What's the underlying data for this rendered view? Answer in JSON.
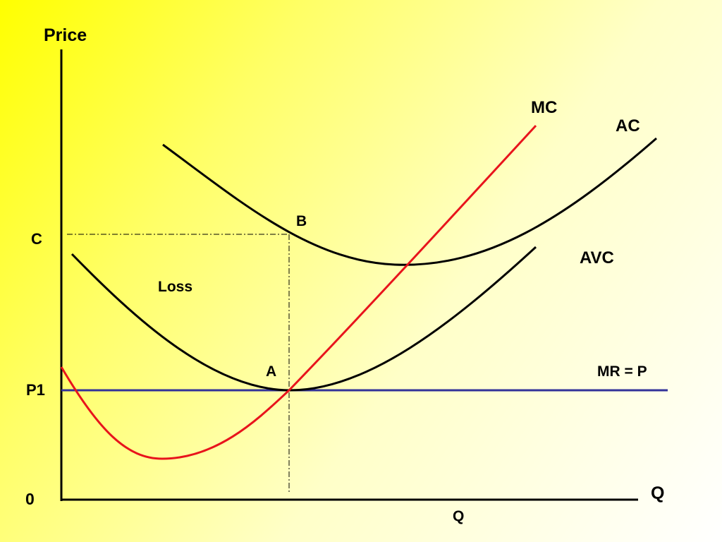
{
  "diagram": {
    "axes": {
      "y_label": "Price",
      "x_label": "Q",
      "origin_label": "0"
    },
    "price_labels": {
      "c": "C",
      "p1": "P1"
    },
    "curves": {
      "mc": "MC",
      "ac": "AC",
      "avc": "AVC",
      "mr": "MR = P"
    },
    "points": {
      "a": "A",
      "b": "B"
    },
    "loss_label": "Loss",
    "quantity_label": "Q",
    "colors": {
      "mc": "#e8141c",
      "mr": "#333399",
      "curves": "#000000",
      "background_start": "#ffff00",
      "background_end": "#ffffff"
    }
  }
}
